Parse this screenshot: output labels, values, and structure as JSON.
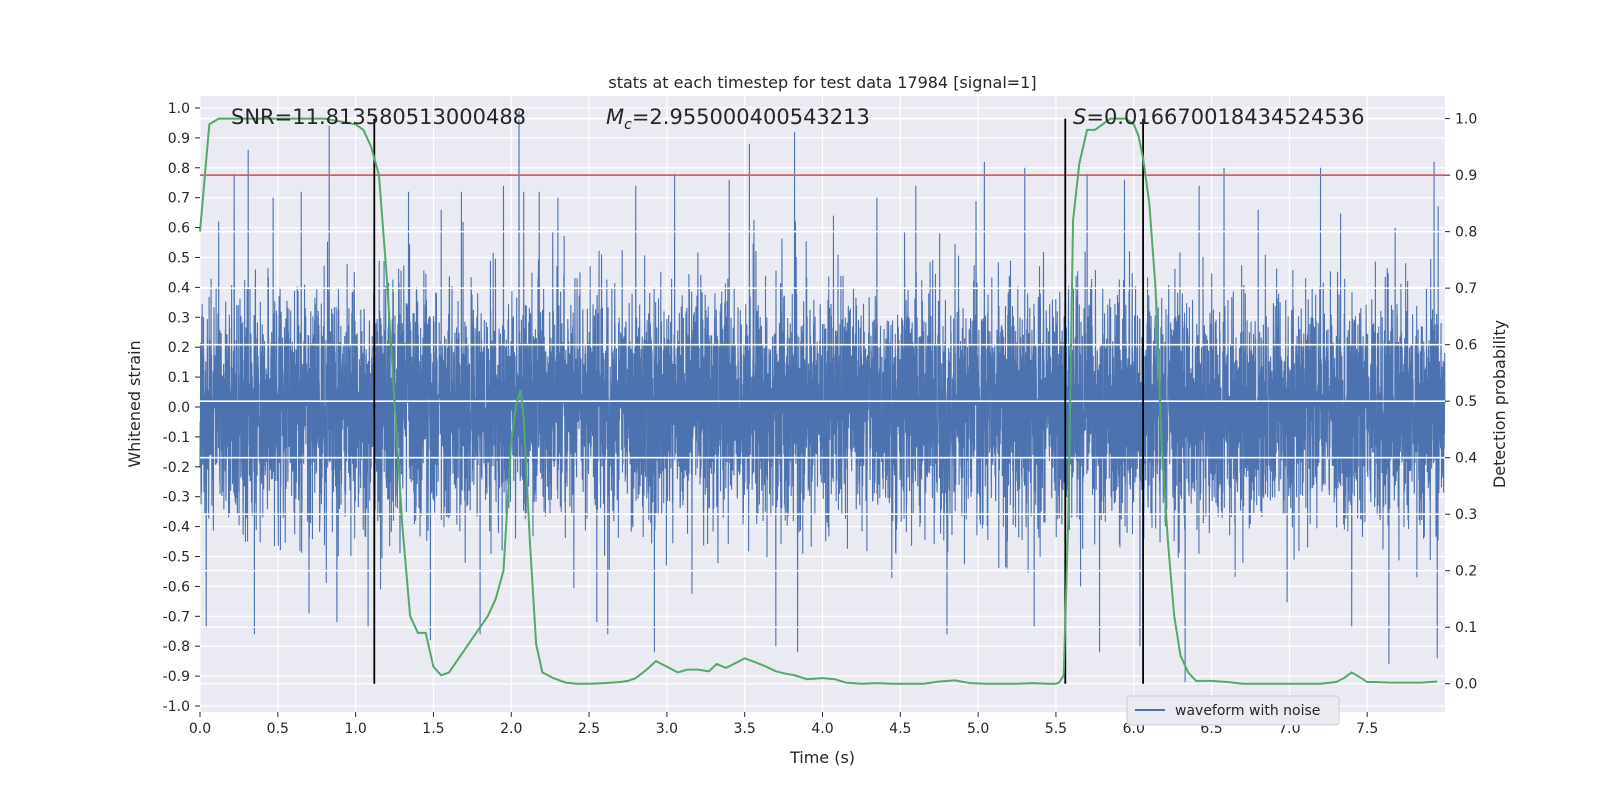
{
  "chart_data": {
    "type": "line",
    "title": "stats at each timestep for test data 17984 [signal=1]",
    "xlabel": "Time (s)",
    "ylabel": "Whitened strain",
    "y2label": "Detection probability",
    "xlim": [
      0.0,
      8.0
    ],
    "ylim": [
      -1.02,
      1.04
    ],
    "y2lim": [
      -0.05,
      1.04
    ],
    "xticks": [
      "0.0",
      "0.5",
      "1.0",
      "1.5",
      "2.0",
      "2.5",
      "3.0",
      "3.5",
      "4.0",
      "4.5",
      "5.0",
      "5.5",
      "6.0",
      "6.5",
      "7.0",
      "7.5"
    ],
    "yticks": [
      "1.0",
      "0.9",
      "0.8",
      "0.7",
      "0.6",
      "0.5",
      "0.4",
      "0.3",
      "0.2",
      "0.1",
      "0.0",
      "-0.1",
      "-0.2",
      "-0.3",
      "-0.4",
      "-0.5",
      "-0.6",
      "-0.7",
      "-0.8",
      "-0.9",
      "-1.0"
    ],
    "y2ticks": [
      "1.0",
      "0.9",
      "0.8",
      "0.7",
      "0.6",
      "0.5",
      "0.4",
      "0.3",
      "0.2",
      "0.1",
      "0.0"
    ],
    "legend": {
      "label": "waveform with noise",
      "position": "lower-right"
    },
    "annotations": {
      "snr": "SNR=11.813580513000488",
      "mc_symbol": "M",
      "mc_sub": "c",
      "mc_value": "=2.955000400543213",
      "s_symbol": "S",
      "s_value": "=0.016670018434524536"
    },
    "threshold": {
      "axis": "right",
      "value": 0.9,
      "color": "#c44e52"
    },
    "vlines": [
      1.12,
      5.56,
      6.06
    ],
    "strain_series": {
      "name": "waveform with noise",
      "color": "#4c72b0",
      "sample_rate": 1024,
      "typical_amplitude": 0.35,
      "peak_amplitude": 0.98,
      "peaks": [
        [
          0.04,
          -0.74
        ],
        [
          0.12,
          0.62
        ],
        [
          0.22,
          0.78
        ],
        [
          0.31,
          0.86
        ],
        [
          0.35,
          -0.76
        ],
        [
          0.47,
          0.7
        ],
        [
          0.65,
          0.72
        ],
        [
          0.7,
          -0.69
        ],
        [
          0.83,
          0.94
        ],
        [
          0.88,
          -0.72
        ],
        [
          1.08,
          -0.74
        ],
        [
          1.16,
          -0.61
        ],
        [
          1.34,
          0.72
        ],
        [
          1.48,
          -0.78
        ],
        [
          1.55,
          0.66
        ],
        [
          1.68,
          0.72
        ],
        [
          1.8,
          -0.76
        ],
        [
          1.95,
          0.74
        ],
        [
          2.05,
          0.99
        ],
        [
          2.08,
          0.72
        ],
        [
          2.18,
          0.72
        ],
        [
          2.3,
          0.7
        ],
        [
          2.55,
          -0.72
        ],
        [
          2.62,
          -0.76
        ],
        [
          2.8,
          0.74
        ],
        [
          2.92,
          -0.82
        ],
        [
          3.05,
          0.78
        ],
        [
          3.4,
          0.76
        ],
        [
          3.53,
          0.88
        ],
        [
          3.7,
          -0.8
        ],
        [
          3.82,
          0.92
        ],
        [
          3.84,
          -0.82
        ],
        [
          4.07,
          0.64
        ],
        [
          4.35,
          0.7
        ],
        [
          4.6,
          0.74
        ],
        [
          4.8,
          -0.76
        ],
        [
          5.04,
          0.82
        ],
        [
          5.3,
          0.8
        ],
        [
          5.36,
          -0.74
        ],
        [
          5.7,
          0.78
        ],
        [
          5.78,
          -0.82
        ],
        [
          5.94,
          0.76
        ],
        [
          6.04,
          -0.8
        ],
        [
          6.33,
          -0.92
        ],
        [
          6.42,
          0.74
        ],
        [
          6.58,
          0.8
        ],
        [
          6.8,
          0.66
        ],
        [
          7.2,
          0.8
        ],
        [
          7.4,
          -0.74
        ],
        [
          7.64,
          -0.86
        ],
        [
          7.68,
          0.6
        ],
        [
          7.93,
          0.82
        ],
        [
          7.95,
          -0.84
        ]
      ]
    },
    "probability_series": {
      "name": "detection probability",
      "color": "#55a868",
      "x": [
        0.0,
        0.06,
        0.12,
        0.3,
        0.6,
        0.8,
        1.0,
        1.05,
        1.1,
        1.15,
        1.2,
        1.25,
        1.3,
        1.35,
        1.4,
        1.45,
        1.5,
        1.55,
        1.6,
        1.65,
        1.7,
        1.8,
        1.85,
        1.9,
        1.95,
        2.0,
        2.03,
        2.06,
        2.08,
        2.12,
        2.16,
        2.2,
        2.27,
        2.35,
        2.42,
        2.5,
        2.6,
        2.7,
        2.75,
        2.8,
        2.87,
        2.93,
        3.0,
        3.07,
        3.13,
        3.2,
        3.27,
        3.32,
        3.38,
        3.43,
        3.5,
        3.57,
        3.64,
        3.7,
        3.76,
        3.82,
        3.9,
        4.0,
        4.08,
        4.15,
        4.25,
        4.35,
        4.45,
        4.55,
        4.65,
        4.75,
        4.85,
        4.95,
        5.05,
        5.15,
        5.25,
        5.35,
        5.45,
        5.5,
        5.52,
        5.55,
        5.58,
        5.61,
        5.65,
        5.7,
        5.75,
        5.8,
        5.85,
        5.9,
        5.95,
        6.0,
        6.03,
        6.06,
        6.1,
        6.14,
        6.18,
        6.22,
        6.26,
        6.3,
        6.35,
        6.4,
        6.5,
        6.6,
        6.7,
        6.8,
        7.0,
        7.2,
        7.3,
        7.35,
        7.4,
        7.45,
        7.5,
        7.55,
        7.65,
        7.75,
        7.85,
        7.95
      ],
      "y": [
        0.8,
        0.99,
        1.0,
        1.0,
        1.0,
        1.0,
        0.99,
        0.98,
        0.95,
        0.9,
        0.72,
        0.5,
        0.28,
        0.12,
        0.09,
        0.09,
        0.03,
        0.015,
        0.02,
        0.04,
        0.06,
        0.1,
        0.12,
        0.15,
        0.2,
        0.43,
        0.49,
        0.52,
        0.47,
        0.25,
        0.07,
        0.02,
        0.01,
        0.002,
        0.0,
        0.0,
        0.001,
        0.003,
        0.005,
        0.01,
        0.025,
        0.04,
        0.03,
        0.02,
        0.025,
        0.025,
        0.022,
        0.035,
        0.028,
        0.035,
        0.045,
        0.038,
        0.03,
        0.022,
        0.018,
        0.015,
        0.008,
        0.01,
        0.008,
        0.002,
        0.0,
        0.001,
        0.0,
        0.0,
        0.0,
        0.004,
        0.006,
        0.001,
        0.0,
        0.0,
        0.0,
        0.001,
        0.0,
        0.0,
        0.002,
        0.015,
        0.3,
        0.82,
        0.92,
        0.98,
        0.98,
        0.99,
        1.0,
        1.0,
        1.0,
        0.99,
        0.97,
        0.93,
        0.85,
        0.7,
        0.42,
        0.25,
        0.12,
        0.05,
        0.02,
        0.005,
        0.005,
        0.003,
        0.0,
        0.0,
        0.0,
        0.0,
        0.003,
        0.01,
        0.02,
        0.012,
        0.003,
        0.003,
        0.002,
        0.002,
        0.002,
        0.004
      ]
    }
  }
}
